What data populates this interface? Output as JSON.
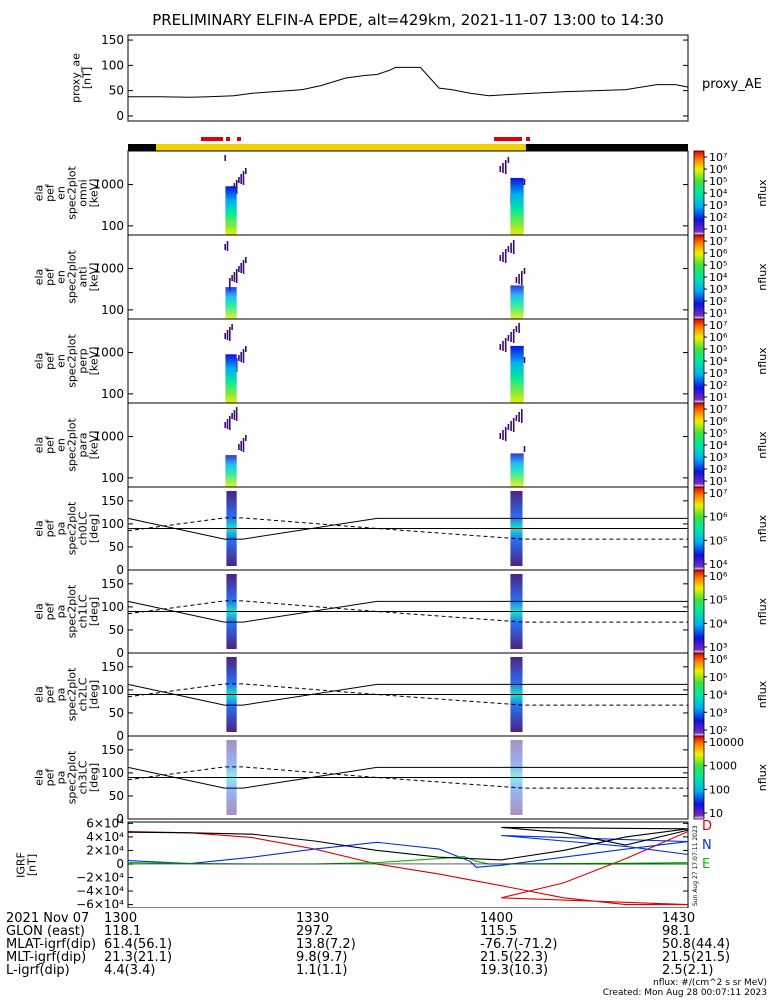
{
  "title": "PRELIMINARY ELFIN-A EPDE, alt=429km, 2021-11-07 13:00 to 14:30",
  "panels": {
    "ae": {
      "ylabel": [
        "proxy_ae",
        "[nT]"
      ],
      "yticks": [
        "150",
        "100",
        "50",
        "0"
      ],
      "legend": "proxy_AE"
    },
    "spec": [
      {
        "ylabel": [
          "ela",
          "pef",
          "en",
          "spec2plot",
          "omni",
          "[keV]"
        ],
        "yticks": [
          "1000",
          "100"
        ]
      },
      {
        "ylabel": [
          "ela",
          "pef",
          "en",
          "spec2plot",
          "anti",
          "[keV]"
        ],
        "yticks": [
          "1000",
          "100"
        ]
      },
      {
        "ylabel": [
          "ela",
          "pef",
          "en",
          "spec2plot",
          "perp",
          "[keV]"
        ],
        "yticks": [
          "1000",
          "100"
        ]
      },
      {
        "ylabel": [
          "ela",
          "pef",
          "en",
          "spec2plot",
          "para",
          "[keV]"
        ],
        "yticks": [
          "1000",
          "100"
        ]
      }
    ],
    "pa": [
      {
        "ylabel": [
          "ela",
          "pef",
          "pa",
          "spec2plot",
          "ch0LC",
          "[deg]"
        ],
        "yticks": [
          "150",
          "100",
          "50",
          "0"
        ]
      },
      {
        "ylabel": [
          "ela",
          "pef",
          "pa",
          "spec2plot",
          "ch1LC",
          "[deg]"
        ],
        "yticks": [
          "150",
          "100",
          "50",
          "0"
        ]
      },
      {
        "ylabel": [
          "ela",
          "pef",
          "pa",
          "spec2plot",
          "ch2LC",
          "[deg]"
        ],
        "yticks": [
          "150",
          "100",
          "50",
          "0"
        ]
      },
      {
        "ylabel": [
          "ela",
          "pef",
          "pa",
          "spec2plot",
          "ch3LC",
          "[deg]"
        ],
        "yticks": [
          "150",
          "100",
          "50",
          "0"
        ]
      }
    ],
    "igrf": {
      "ylabel": [
        "IGRF",
        "[nT]"
      ],
      "yticks": [
        "6×10⁴",
        "4×10⁴",
        "2×10⁴",
        "0",
        "−2×10⁴",
        "−4×10⁴",
        "−6×10⁴"
      ],
      "legend": [
        "D",
        "N",
        "E"
      ],
      "legend_colors": [
        "#e00000",
        "#0030e0",
        "#00c000"
      ],
      "side_note": "Sun Aug 27 17:07:11 2023"
    }
  },
  "colorbars": [
    {
      "label": "nflux",
      "ticks": [
        "10⁷",
        "10⁶",
        "10⁵",
        "10⁴",
        "10³",
        "10²",
        "10¹"
      ]
    },
    {
      "label": "nflux",
      "ticks": [
        "10⁷",
        "10⁶",
        "10⁵",
        "10⁴",
        "10³",
        "10²",
        "10¹"
      ]
    },
    {
      "label": "nflux",
      "ticks": [
        "10⁷",
        "10⁶",
        "10⁵",
        "10⁴",
        "10³",
        "10²",
        "10¹"
      ]
    },
    {
      "label": "nflux",
      "ticks": [
        "10⁷",
        "10⁶",
        "10⁵",
        "10⁴",
        "10³",
        "10²",
        "10¹"
      ]
    },
    {
      "label": "nflux",
      "ticks": [
        "10⁷",
        "10⁶",
        "10⁵",
        "10⁴"
      ]
    },
    {
      "label": "nflux",
      "ticks": [
        "10⁶",
        "10⁵",
        "10⁴",
        "10³"
      ]
    },
    {
      "label": "nflux",
      "ticks": [
        "10⁶",
        "10⁵",
        "10⁴",
        "10³",
        "10²"
      ]
    },
    {
      "label": "nflux",
      "ticks": [
        "10000",
        "1000",
        "100",
        "10"
      ]
    }
  ],
  "footer": {
    "rows": [
      {
        "label": "2021 Nov 07",
        "values": [
          "1300",
          "1330",
          "1400",
          "1430"
        ]
      },
      {
        "label": "GLON (east)",
        "values": [
          "118.1",
          "297.2",
          "115.5",
          "98.1"
        ]
      },
      {
        "label": "MLAT-igrf(dip)",
        "values": [
          "61.4(56.1)",
          "13.8(7.2)",
          "-76.7(-71.2)",
          "50.8(44.4)"
        ]
      },
      {
        "label": "MLT-igrf(dip)",
        "values": [
          "21.3(21.1)",
          "9.8(9.7)",
          "21.5(22.3)",
          "21.5(21.5)"
        ]
      },
      {
        "label": "L-igrf(dip)",
        "values": [
          "4.4(3.4)",
          "1.1(1.1)",
          "19.3(10.3)",
          "2.5(2.1)"
        ]
      }
    ],
    "note1": "nflux: #/(cm^2 s sr MeV)",
    "note2": "Created: Mon Aug 28 00:07:11 2023"
  },
  "colors": {
    "orbit_dark": "#000000",
    "orbit_light": "#f0d000",
    "science_marks": "#e00000"
  },
  "chart_data": [
    {
      "type": "line",
      "title": "PRELIMINARY ELFIN-A EPDE, alt=429km, 2021-11-07 13:00 to 14:30",
      "ylabel": "proxy_ae [nT]",
      "ylim": [
        -10,
        160
      ],
      "series": [
        {
          "name": "proxy_AE",
          "x": [
            1300,
            1305,
            1310,
            1313,
            1317,
            1320,
            1328,
            1331,
            1335,
            1338,
            1340,
            1342,
            1343,
            1347,
            1350,
            1352,
            1355,
            1358,
            1405,
            1410,
            1420,
            1425,
            1428,
            1430
          ],
          "y": [
            38,
            38,
            37,
            38,
            40,
            45,
            52,
            60,
            75,
            80,
            82,
            90,
            96,
            96,
            55,
            52,
            45,
            40,
            45,
            48,
            52,
            62,
            62,
            57
          ]
        }
      ]
    },
    {
      "type": "heatmap",
      "description_of_axes": "energy [keV] vs time, log color nflux",
      "panels": [
        "omni",
        "anti",
        "perp",
        "para"
      ],
      "ylim": [
        60,
        6500
      ],
      "clim": [
        10,
        10000000
      ],
      "bursts": [
        {
          "start": 1315.5,
          "end": 1318.8
        },
        {
          "start": 1359.7,
          "end": 1403.6
        }
      ]
    },
    {
      "type": "line",
      "description_of_axes": "pitch angle [deg] vs time with loss-cone overlays",
      "panels": [
        "ch0LC",
        "ch1LC",
        "ch2LC",
        "ch3LC"
      ],
      "ylim": [
        0,
        180
      ],
      "series": [
        {
          "name": "",
          "x": [
            1300,
            1315.5,
            1318.5,
            1340,
            1430
          ],
          "y": [
            112,
            67,
            67,
            112,
            112
          ]
        },
        {
          "name": "",
          "x": [
            1300,
            1430
          ],
          "y": [
            90,
            90
          ]
        },
        {
          "name": "",
          "style": "dashed",
          "x": [
            1300,
            1315.5,
            1318.5,
            1340,
            1403.5,
            1430
          ],
          "y": [
            85,
            113,
            113,
            90,
            67,
            67
          ]
        }
      ]
    },
    {
      "type": "line",
      "ylabel": "IGRF [nT]",
      "ylim": [
        -65000,
        62000
      ],
      "series": [
        {
          "name": "D",
          "color": "#e00000",
          "x": [
            1300,
            1310,
            1320,
            1330,
            1340,
            1350,
            1360,
            1370,
            1380,
            1390,
            1400,
            1410,
            1420,
            1430
          ],
          "y": [
            48000,
            46000,
            39000,
            22000,
            0,
            -15000,
            -32000,
            -50000,
            -60000,
            -60000,
            -50000,
            -28000,
            8000,
            48000
          ]
        },
        {
          "name": "N",
          "color": "#0030e0",
          "x": [
            1300,
            1310,
            1320,
            1330,
            1340,
            1350,
            1355,
            1356,
            1357,
            1360,
            1370,
            1380,
            1390,
            1400,
            1410,
            1420,
            1430
          ],
          "y": [
            5000,
            500,
            10000,
            22000,
            32000,
            22000,
            4000,
            -5000,
            -4000,
            -2000,
            10000,
            22000,
            33000,
            42000,
            34000,
            26000,
            14000
          ]
        },
        {
          "name": "E",
          "color": "#00c000",
          "x": [
            1300,
            1310,
            1320,
            1330,
            1340,
            1350,
            1354,
            1356,
            1358,
            1370,
            1380,
            1390,
            1400,
            1410,
            1420,
            1430
          ],
          "y": [
            2000,
            500,
            0,
            0,
            2000,
            8000,
            11000,
            4000,
            0,
            0,
            0,
            0,
            0,
            500,
            1000,
            2000
          ]
        },
        {
          "name": "",
          "color": "#000000",
          "x": [
            1300,
            1310,
            1320,
            1330,
            1340,
            1350,
            1360,
            1370,
            1380,
            1390,
            1400,
            1410,
            1420,
            1430
          ],
          "y": [
            47000,
            46000,
            44000,
            34000,
            20000,
            10000,
            6000,
            20000,
            40000,
            52000,
            54000,
            46000,
            28000,
            50000
          ]
        }
      ]
    }
  ]
}
